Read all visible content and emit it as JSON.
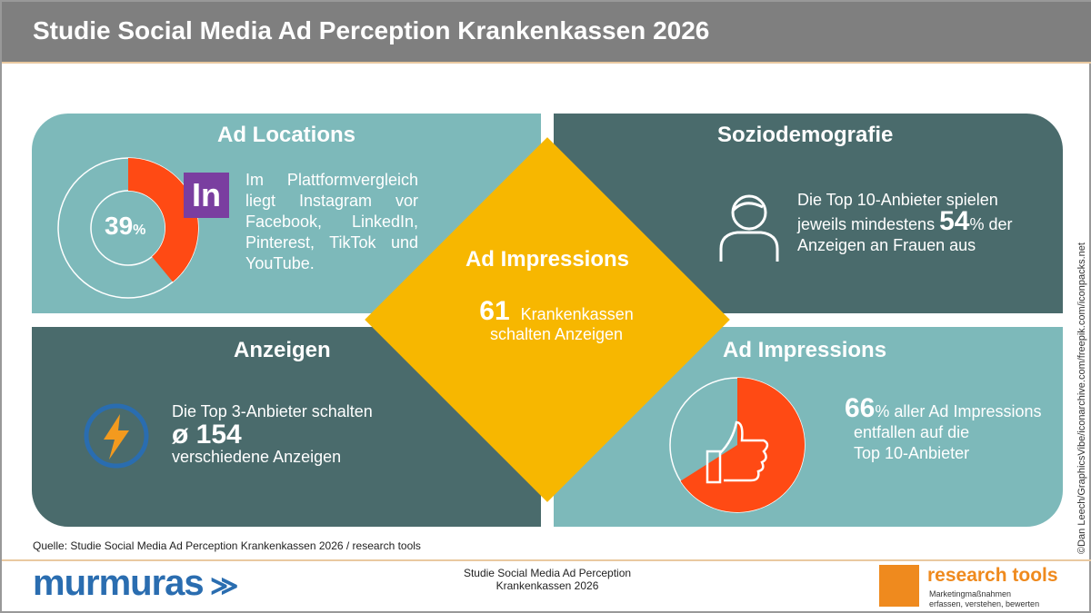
{
  "header": {
    "title": "Studie Social Media Ad Perception Krankenkassen 2026"
  },
  "ad_locations": {
    "title": "Ad Locations",
    "percent": "39",
    "percent_sign": "%",
    "percent_value": 39,
    "logo_text": "In",
    "text": "Im Plattformvergleich liegt Instagram vor Facebook, LinkedIn, Pinterest, TikTok und YouTube.",
    "colors": {
      "ring": "#ff4a14",
      "logo": "#7a3ea0"
    }
  },
  "soziodemografie": {
    "title": "Soziodemografie",
    "text1": "Die Top 10-Anbieter spielen",
    "text2": "jeweils mindestens",
    "percent": "54",
    "percent_sign": "%",
    "text3": "der",
    "text4": "Anzeigen  an Frauen aus"
  },
  "center": {
    "title": "Ad Impressions",
    "number": "61",
    "text1": "Krankenkassen",
    "text2": "schalten Anzeigen"
  },
  "anzeigen": {
    "title": "Anzeigen",
    "text1": "Die Top 3-Anbieter schalten",
    "number": "ø 154",
    "text2": "verschiedene Anzeigen"
  },
  "ad_impressions": {
    "title": "Ad Impressions",
    "percent": "66",
    "percent_sign": "%",
    "percent_value": 66,
    "text1": "aller Ad Impressions",
    "text2": "entfallen auf die",
    "text3": "Top 10-Anbieter"
  },
  "footer": {
    "source": "Quelle: Studie Social Media Ad Perception Krankenkassen 2026 / research tools",
    "logo_left": "murmuras",
    "title1": "Studie Social Media Ad Perception",
    "title2": "Krankenkassen 2026",
    "logo_right": "research tools",
    "tagline1": "Marketingmaßnahmen",
    "tagline2": "erfassen, verstehen, bewerten"
  },
  "credit": "©Dan Leech/GraphicsVibe/iconarchive.com/freepik.com/iconpacks.net"
}
